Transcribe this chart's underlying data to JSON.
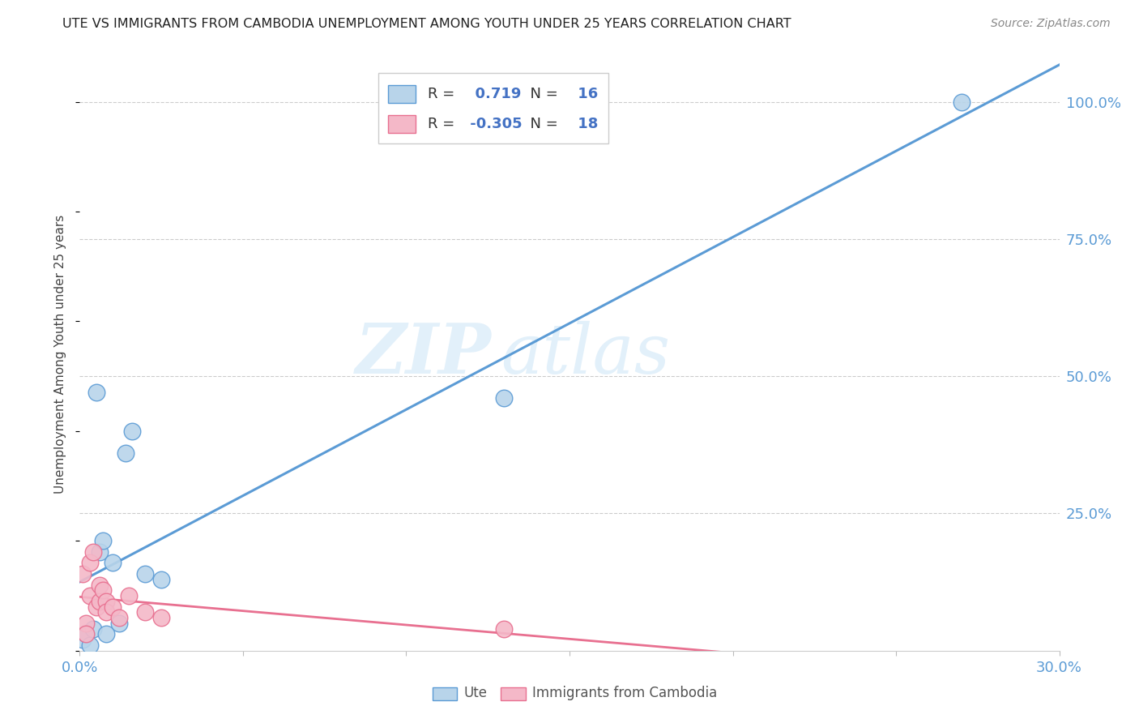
{
  "title": "UTE VS IMMIGRANTS FROM CAMBODIA UNEMPLOYMENT AMONG YOUTH UNDER 25 YEARS CORRELATION CHART",
  "source": "Source: ZipAtlas.com",
  "ylabel": "Unemployment Among Youth under 25 years",
  "legend_label1": "Ute",
  "legend_label2": "Immigrants from Cambodia",
  "r1": "0.719",
  "n1": "16",
  "r2": "-0.305",
  "n2": "18",
  "watermark": "ZIPatlas",
  "ute_color": "#b8d4ea",
  "ute_line_color": "#5b9bd5",
  "cambodia_color": "#f4b8c8",
  "cambodia_line_color": "#e87090",
  "ute_x": [
    0.001,
    0.002,
    0.003,
    0.004,
    0.005,
    0.006,
    0.007,
    0.008,
    0.01,
    0.012,
    0.014,
    0.016,
    0.02,
    0.025,
    0.13,
    0.27
  ],
  "ute_y": [
    0.02,
    0.03,
    0.01,
    0.04,
    0.47,
    0.18,
    0.2,
    0.03,
    0.16,
    0.05,
    0.36,
    0.4,
    0.14,
    0.13,
    0.46,
    1.0
  ],
  "cambodia_x": [
    0.001,
    0.002,
    0.002,
    0.003,
    0.003,
    0.004,
    0.005,
    0.006,
    0.006,
    0.007,
    0.008,
    0.008,
    0.01,
    0.012,
    0.015,
    0.02,
    0.025,
    0.13
  ],
  "cambodia_y": [
    0.14,
    0.05,
    0.03,
    0.1,
    0.16,
    0.18,
    0.08,
    0.12,
    0.09,
    0.11,
    0.09,
    0.07,
    0.08,
    0.06,
    0.1,
    0.07,
    0.06,
    0.04
  ],
  "xlim": [
    0.0,
    0.3
  ],
  "ylim": [
    0.0,
    1.08
  ],
  "y_ticks": [
    0.25,
    0.5,
    0.75,
    1.0
  ],
  "x_ticks": [
    0.0,
    0.05,
    0.1,
    0.15,
    0.2,
    0.25,
    0.3
  ]
}
